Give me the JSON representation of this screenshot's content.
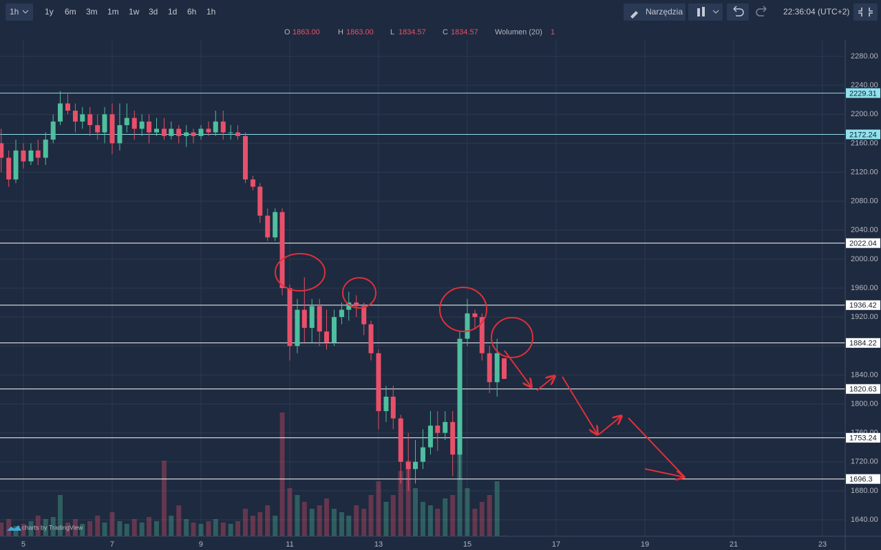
{
  "toolbar": {
    "interval": "1h",
    "ranges": [
      "1y",
      "6m",
      "3m",
      "1m",
      "1w",
      "3d",
      "1d",
      "6h",
      "1h"
    ],
    "tools": "Narzędzia",
    "clock": "22:36:04 (UTC+2)"
  },
  "legend": {
    "items": [
      {
        "key": "O",
        "value": "1863.00"
      },
      {
        "key": "H",
        "value": "1863.00"
      },
      {
        "key": "L",
        "value": "1834.57"
      },
      {
        "key": "C",
        "value": "1834.57"
      }
    ],
    "volume_label": "Wolumen (20)",
    "volume_value": "1"
  },
  "watermark": "charts by TradingView",
  "chart_data": {
    "type": "candlestick",
    "x": [
      4.5,
      4.67,
      4.83,
      5,
      5.17,
      5.33,
      5.5,
      5.67,
      5.83,
      6,
      6.17,
      6.33,
      6.5,
      6.67,
      6.83,
      7,
      7.17,
      7.33,
      7.5,
      7.67,
      7.83,
      8,
      8.17,
      8.33,
      8.5,
      8.67,
      8.83,
      9,
      9.17,
      9.33,
      9.5,
      9.67,
      9.83,
      10,
      10.17,
      10.33,
      10.5,
      10.67,
      10.83,
      11,
      11.17,
      11.33,
      11.5,
      11.67,
      11.83,
      12,
      12.17,
      12.33,
      12.5,
      12.67,
      12.83,
      13,
      13.17,
      13.33,
      13.5,
      13.67,
      13.83,
      14,
      14.17,
      14.33,
      14.5,
      14.67,
      14.83,
      15,
      15.17,
      15.33,
      15.5,
      15.67,
      15.83
    ],
    "open": [
      2160,
      2140,
      2110,
      2150,
      2135,
      2150,
      2140,
      2165,
      2190,
      2215,
      2205,
      2190,
      2200,
      2185,
      2175,
      2200,
      2160,
      2185,
      2195,
      2180,
      2190,
      2175,
      2180,
      2170,
      2180,
      2170,
      2175,
      2170,
      2180,
      2175,
      2190,
      2175,
      2175,
      2170,
      2110,
      2100,
      2060,
      2030,
      2065,
      1960,
      1880,
      1930,
      1905,
      1935,
      1900,
      1885,
      1920,
      1930,
      1940,
      1935,
      1910,
      1870,
      1790,
      1810,
      1780,
      1720,
      1710,
      1720,
      1740,
      1770,
      1760,
      1775,
      1730,
      1890,
      1925,
      1920,
      1870,
      1830,
      1863
    ],
    "high": [
      2180,
      2150,
      2165,
      2160,
      2160,
      2165,
      2175,
      2200,
      2232,
      2228,
      2215,
      2210,
      2210,
      2200,
      2210,
      2215,
      2215,
      2215,
      2205,
      2200,
      2200,
      2195,
      2195,
      2190,
      2185,
      2185,
      2180,
      2185,
      2190,
      2205,
      2205,
      2185,
      2185,
      2175,
      2115,
      2105,
      2070,
      2070,
      2070,
      1965,
      1945,
      1975,
      1945,
      1945,
      1930,
      1930,
      1940,
      1955,
      1950,
      1940,
      1915,
      1875,
      1825,
      1825,
      1785,
      1760,
      1750,
      1765,
      1790,
      1790,
      1790,
      1790,
      1900,
      1945,
      1930,
      1925,
      1880,
      1890,
      1863
    ],
    "low": [
      2120,
      2100,
      2105,
      2125,
      2130,
      2130,
      2130,
      2160,
      2185,
      2200,
      2175,
      2180,
      2170,
      2165,
      2160,
      2145,
      2150,
      2175,
      2165,
      2170,
      2160,
      2170,
      2165,
      2165,
      2160,
      2155,
      2160,
      2165,
      2170,
      2170,
      2165,
      2165,
      2165,
      2105,
      2095,
      2050,
      2025,
      2025,
      1950,
      1860,
      1870,
      1885,
      1885,
      1880,
      1875,
      1880,
      1910,
      1915,
      1920,
      1895,
      1860,
      1765,
      1775,
      1765,
      1690,
      1680,
      1690,
      1710,
      1730,
      1735,
      1750,
      1700,
      1695,
      1880,
      1905,
      1860,
      1815,
      1810,
      1834.57
    ],
    "close": [
      2140,
      2110,
      2150,
      2135,
      2150,
      2140,
      2165,
      2190,
      2215,
      2205,
      2190,
      2200,
      2185,
      2175,
      2200,
      2160,
      2185,
      2195,
      2180,
      2190,
      2175,
      2180,
      2170,
      2180,
      2170,
      2175,
      2170,
      2180,
      2175,
      2190,
      2175,
      2175,
      2170,
      2110,
      2100,
      2060,
      2030,
      2065,
      1960,
      1880,
      1930,
      1905,
      1935,
      1900,
      1885,
      1920,
      1930,
      1940,
      1935,
      1910,
      1870,
      1790,
      1810,
      1780,
      1720,
      1710,
      1720,
      1740,
      1770,
      1760,
      1775,
      1730,
      1890,
      1925,
      1920,
      1870,
      1830,
      1870,
      1834.57
    ],
    "volume": [
      20,
      25,
      15,
      18,
      22,
      30,
      25,
      28,
      60,
      20,
      25,
      18,
      22,
      30,
      20,
      35,
      22,
      18,
      25,
      20,
      28,
      22,
      110,
      30,
      45,
      25,
      20,
      18,
      22,
      25,
      20,
      18,
      22,
      40,
      30,
      35,
      45,
      30,
      180,
      70,
      60,
      50,
      40,
      45,
      55,
      40,
      35,
      30,
      45,
      40,
      60,
      80,
      50,
      60,
      95,
      110,
      70,
      50,
      45,
      40,
      55,
      60,
      120,
      70,
      40,
      50,
      60,
      80,
      1
    ],
    "xlim": [
      4.473,
      23.512
    ],
    "xticks": [
      5,
      7,
      9,
      11,
      13,
      15,
      17,
      19,
      21,
      23
    ],
    "ylim": [
      1617.2,
      2302.8
    ],
    "yticks": [
      {
        "value": 1640,
        "label": "1640.00"
      },
      {
        "value": 1680,
        "label": "1680.00"
      },
      {
        "value": 1720,
        "label": "1720.00"
      },
      {
        "value": 1760,
        "label": "1760.00"
      },
      {
        "value": 1800,
        "label": "1800.00"
      },
      {
        "value": 1840,
        "label": "1840.00"
      },
      {
        "value": 1880,
        "label": "1880.00"
      },
      {
        "value": 1920,
        "label": "1920.00"
      },
      {
        "value": 1960,
        "label": "1960.00"
      },
      {
        "value": 2000,
        "label": "2000.00"
      },
      {
        "value": 2040,
        "label": "2040.00"
      },
      {
        "value": 2080,
        "label": "2080.00"
      },
      {
        "value": 2120,
        "label": "2120.00"
      },
      {
        "value": 2160,
        "label": "2160.00"
      },
      {
        "value": 2200,
        "label": "2200.00"
      },
      {
        "value": 2240,
        "label": "2240.00"
      },
      {
        "value": 2280,
        "label": "2280.00"
      }
    ],
    "up_color": "#4fbf9f",
    "down_color": "#e8506a",
    "grid": true,
    "levels": [
      {
        "value": 2229.31,
        "color": "#8fe3ef"
      },
      {
        "value": 2172.24,
        "color": "#8fe3ef"
      },
      {
        "value": 2022.04,
        "color": "#ffffff"
      },
      {
        "value": 1936.42,
        "color": "#ffffff"
      },
      {
        "value": 1884.22,
        "color": "#ffffff"
      },
      {
        "value": 1820.63,
        "color": "#ffffff"
      },
      {
        "value": 1753.24,
        "color": "#ffffff"
      },
      {
        "value": 1696.3,
        "color": "#ffffff"
      }
    ]
  }
}
